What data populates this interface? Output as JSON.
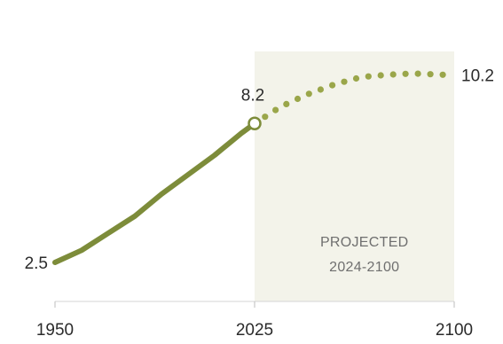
{
  "chart_data": {
    "type": "line",
    "title": "",
    "xlabel": "",
    "ylabel": "",
    "xlim": [
      1950,
      2100
    ],
    "ylim": [
      2.5,
      10.5
    ],
    "x_ticks": [
      "1950",
      "2025",
      "2100"
    ],
    "series": [
      {
        "style": "solid",
        "color": "#7d8c3a",
        "x": [
          1950,
          1960,
          1970,
          1980,
          1990,
          2000,
          2010,
          2020,
          2025
        ],
        "y": [
          2.5,
          3.0,
          3.7,
          4.4,
          5.3,
          6.1,
          6.9,
          7.8,
          8.2
        ]
      },
      {
        "style": "dotted",
        "color": "#9aa64a",
        "x": [
          2025,
          2035,
          2045,
          2055,
          2065,
          2075,
          2085,
          2095,
          2100
        ],
        "y": [
          8.2,
          8.9,
          9.4,
          9.8,
          10.1,
          10.2,
          10.25,
          10.2,
          10.2
        ]
      }
    ],
    "annotations": {
      "start_value": "2.5",
      "mid_value": "8.2",
      "end_value": "10.2",
      "projection_region": {
        "x_start": 2025,
        "x_end": 2100,
        "label_line1": "PROJECTED",
        "label_line2": "2024-2100",
        "shade_color": "#f3f3ea"
      }
    },
    "grid": false,
    "legend": "none"
  }
}
